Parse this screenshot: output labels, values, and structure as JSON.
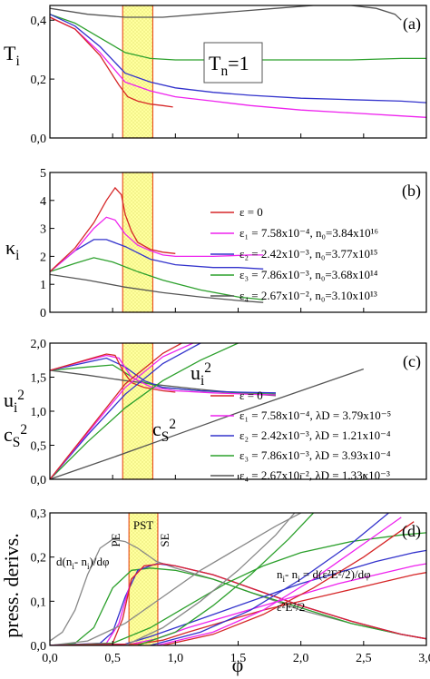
{
  "chart_data": [
    {
      "id": "a",
      "type": "line",
      "panel_label": "(a)",
      "ylabel": "T",
      "ylabel_sub": "i",
      "xlim": [
        0,
        3.0
      ],
      "ylim": [
        0,
        0.45
      ],
      "yticks": [
        "0,0",
        "0,2",
        "0,4"
      ],
      "ytick_values": [
        0,
        0.2,
        0.4
      ],
      "annotation": "T",
      "annotation_sub": "n",
      "annotation_rest": "=1",
      "band": {
        "x0": 0.58,
        "x1": 0.82,
        "style": "hatched-yellow"
      },
      "series": [
        {
          "color": "#555555",
          "x": [
            0,
            0.3,
            0.6,
            0.9,
            1.2,
            1.5,
            1.8,
            2.1,
            2.4,
            2.6,
            2.75,
            2.8
          ],
          "y": [
            0.44,
            0.42,
            0.41,
            0.41,
            0.42,
            0.43,
            0.44,
            0.45,
            0.45,
            0.44,
            0.42,
            0.4
          ]
        },
        {
          "color": "#2ca02c",
          "x": [
            0,
            0.2,
            0.4,
            0.6,
            0.8,
            1.0,
            1.3,
            1.6,
            2.0,
            2.4,
            2.8,
            3.0
          ],
          "y": [
            0.42,
            0.39,
            0.34,
            0.29,
            0.27,
            0.265,
            0.265,
            0.265,
            0.265,
            0.265,
            0.27,
            0.27
          ]
        },
        {
          "color": "#3333cc",
          "x": [
            0,
            0.2,
            0.4,
            0.6,
            0.8,
            1.0,
            1.3,
            1.6,
            2.0,
            2.4,
            2.8,
            3.0
          ],
          "y": [
            0.42,
            0.38,
            0.31,
            0.22,
            0.19,
            0.17,
            0.155,
            0.145,
            0.135,
            0.13,
            0.125,
            0.12
          ]
        },
        {
          "color": "#ee22ee",
          "x": [
            0,
            0.2,
            0.4,
            0.6,
            0.8,
            1.0,
            1.3,
            1.6,
            2.0,
            2.4,
            2.8,
            3.0
          ],
          "y": [
            0.41,
            0.37,
            0.29,
            0.19,
            0.16,
            0.14,
            0.125,
            0.11,
            0.095,
            0.085,
            0.075,
            0.07
          ]
        },
        {
          "color": "#d62728",
          "x": [
            0,
            0.2,
            0.4,
            0.55,
            0.62,
            0.7,
            0.8,
            0.9,
            0.98
          ],
          "y": [
            0.41,
            0.37,
            0.28,
            0.18,
            0.14,
            0.125,
            0.115,
            0.11,
            0.105
          ]
        }
      ]
    },
    {
      "id": "b",
      "type": "line",
      "panel_label": "(b)",
      "ylabel": "κ",
      "ylabel_sub": "i",
      "xlim": [
        0,
        3.0
      ],
      "ylim": [
        0,
        5
      ],
      "yticks": [
        "0",
        "1",
        "2",
        "3",
        "4",
        "5"
      ],
      "ytick_values": [
        0,
        1,
        2,
        3,
        4,
        5
      ],
      "band": {
        "x0": 0.58,
        "x1": 0.82,
        "style": "hatched-yellow"
      },
      "legend": [
        {
          "color": "#d62728",
          "text": "ε = 0"
        },
        {
          "color": "#ee22ee",
          "text": "ε₁ = 7.58x10⁻⁴, n₀=3.84x10¹⁶"
        },
        {
          "color": "#3333cc",
          "text": "ε₂ = 2.42x10⁻³, n₀=3.77x10¹⁵"
        },
        {
          "color": "#2ca02c",
          "text": "ε₃ = 7.86x10⁻³, n₀=3.68x10¹⁴"
        },
        {
          "color": "#555555",
          "text": "ε₄ = 2.67x10⁻², n₀=3.10x10¹³"
        }
      ],
      "series": [
        {
          "color": "#555555",
          "x": [
            0,
            0.3,
            0.6,
            0.9,
            1.2,
            1.5,
            1.7
          ],
          "y": [
            1.35,
            1.15,
            0.9,
            0.7,
            0.55,
            0.42,
            0.35
          ]
        },
        {
          "color": "#2ca02c",
          "x": [
            0,
            0.2,
            0.35,
            0.5,
            0.7,
            0.9,
            1.2,
            1.5,
            1.7
          ],
          "y": [
            1.45,
            1.75,
            1.95,
            1.8,
            1.45,
            1.15,
            0.8,
            0.55,
            0.45
          ]
        },
        {
          "color": "#3333cc",
          "x": [
            0,
            0.2,
            0.35,
            0.45,
            0.6,
            0.8,
            1.0,
            1.3,
            1.5,
            1.7
          ],
          "y": [
            1.45,
            2.2,
            2.6,
            2.6,
            2.35,
            1.9,
            1.7,
            1.6,
            1.6,
            1.55
          ]
        },
        {
          "color": "#ee22ee",
          "x": [
            0,
            0.2,
            0.35,
            0.45,
            0.52,
            0.6,
            0.7,
            0.8,
            0.9,
            1.0,
            1.3,
            1.6,
            1.7
          ],
          "y": [
            1.45,
            2.2,
            3.0,
            3.4,
            3.3,
            2.8,
            2.4,
            2.2,
            2.05,
            2.0,
            2.0,
            2.05,
            2.05
          ]
        },
        {
          "color": "#d62728",
          "x": [
            0,
            0.2,
            0.35,
            0.45,
            0.52,
            0.57,
            0.6,
            0.65,
            0.7,
            0.8,
            0.9,
            1.0
          ],
          "y": [
            1.45,
            2.3,
            3.2,
            4.0,
            4.45,
            4.2,
            3.5,
            2.9,
            2.5,
            2.25,
            2.15,
            2.1
          ]
        }
      ]
    },
    {
      "id": "c",
      "type": "line",
      "panel_label": "(c)",
      "ylabel": "u",
      "ylabel_sub": "i",
      "ylabel_sup": "2",
      "ylabel2": "c",
      "ylabel2_sub": "S",
      "ylabel2_sup": "2",
      "xlim": [
        0,
        3.0
      ],
      "ylim": [
        0,
        2.0
      ],
      "yticks": [
        "0,0",
        "0,5",
        "1,0",
        "1,5",
        "2,0"
      ],
      "ytick_values": [
        0,
        0.5,
        1.0,
        1.5,
        2.0
      ],
      "band": {
        "x0": 0.58,
        "x1": 0.82,
        "style": "hatched-yellow"
      },
      "annotations": [
        {
          "text": "u",
          "sub": "i",
          "sup": "2"
        },
        {
          "text": "c",
          "sub": "S",
          "sup": "2"
        }
      ],
      "legend": [
        {
          "color": "#d62728",
          "text": "ε = 0"
        },
        {
          "color": "#ee22ee",
          "text": "ε₁ = 7.58x10⁻⁴, λD = 3.79x10⁻⁵"
        },
        {
          "color": "#3333cc",
          "text": "ε₂ = 2.42x10⁻³, λD = 1.21x10⁻⁴"
        },
        {
          "color": "#2ca02c",
          "text": "ε₃ = 7.86x10⁻³, λD = 3.93x10⁻⁴"
        },
        {
          "color": "#555555",
          "text": "ε₄ = 2.67x10⁻², λD = 1.33x10⁻³"
        }
      ],
      "series_cs2": [
        {
          "color": "#555555",
          "x": [
            0,
            0.3,
            0.6,
            0.9,
            1.2,
            1.5,
            1.8
          ],
          "y": [
            1.6,
            1.53,
            1.45,
            1.38,
            1.32,
            1.27,
            1.23
          ]
        },
        {
          "color": "#2ca02c",
          "x": [
            0,
            0.3,
            0.5,
            0.7,
            0.9,
            1.2,
            1.5,
            1.8
          ],
          "y": [
            1.6,
            1.65,
            1.68,
            1.45,
            1.35,
            1.3,
            1.27,
            1.25
          ]
        },
        {
          "color": "#3333cc",
          "x": [
            0,
            0.3,
            0.45,
            0.6,
            0.75,
            0.9,
            1.2,
            1.5,
            1.8
          ],
          "y": [
            1.6,
            1.72,
            1.78,
            1.65,
            1.45,
            1.35,
            1.3,
            1.28,
            1.27
          ]
        },
        {
          "color": "#ee22ee",
          "x": [
            0,
            0.3,
            0.45,
            0.55,
            0.65,
            0.8,
            1.0,
            1.3,
            1.6,
            1.8
          ],
          "y": [
            1.6,
            1.75,
            1.82,
            1.78,
            1.5,
            1.36,
            1.3,
            1.27,
            1.25,
            1.24
          ]
        },
        {
          "color": "#d62728",
          "x": [
            0,
            0.3,
            0.45,
            0.52,
            0.58,
            0.65,
            0.75,
            0.9,
            1.0
          ],
          "y": [
            1.6,
            1.76,
            1.84,
            1.82,
            1.6,
            1.42,
            1.35,
            1.3,
            1.28
          ]
        }
      ],
      "series_ui2": [
        {
          "color": "#555555",
          "x": [
            0,
            0.5,
            1.0,
            1.5,
            2.0,
            2.5
          ],
          "y": [
            0,
            0.32,
            0.65,
            0.98,
            1.3,
            1.62
          ]
        },
        {
          "color": "#2ca02c",
          "x": [
            0,
            0.3,
            0.6,
            0.9,
            1.2,
            1.5,
            1.8
          ],
          "y": [
            0,
            0.55,
            1.05,
            1.45,
            1.75,
            2.0,
            2.2
          ]
        },
        {
          "color": "#3333cc",
          "x": [
            0,
            0.3,
            0.6,
            0.9,
            1.2,
            1.4,
            1.6
          ],
          "y": [
            0,
            0.65,
            1.25,
            1.7,
            2.0,
            2.2,
            2.35
          ]
        },
        {
          "color": "#ee22ee",
          "x": [
            0,
            0.3,
            0.6,
            0.9,
            1.2,
            1.4
          ],
          "y": [
            0,
            0.68,
            1.35,
            1.8,
            2.05,
            2.2
          ]
        },
        {
          "color": "#d62728",
          "x": [
            0,
            0.3,
            0.6,
            0.9,
            1.1,
            1.3
          ],
          "y": [
            0,
            0.7,
            1.4,
            1.85,
            2.05,
            2.2
          ]
        }
      ]
    },
    {
      "id": "d",
      "type": "line",
      "panel_label": "(d)",
      "ylabel": "press. derivs.",
      "xlabel": "φ",
      "xlim": [
        0,
        3.0
      ],
      "ylim": [
        0,
        0.3
      ],
      "xticks": [
        "0,0",
        "0,5",
        "1,0",
        "1,5",
        "2,0",
        "2,5",
        "3,0"
      ],
      "xtick_values": [
        0,
        0.5,
        1.0,
        1.5,
        2.0,
        2.5,
        3.0
      ],
      "yticks": [
        "0,0",
        "0,1",
        "0,2",
        "0,3"
      ],
      "ytick_values": [
        0,
        0.1,
        0.2,
        0.3
      ],
      "band": {
        "x0": 0.63,
        "x1": 0.86,
        "style": "hatched-yellow"
      },
      "band_label": "PST",
      "region_labels": [
        "PE",
        "SE"
      ],
      "annotations": [
        {
          "text": "d(n",
          "sub1": "i",
          "mid": "- n",
          "sub2": "i",
          "end": ")/dφ"
        },
        {
          "text": "n",
          "sub1": "i",
          "mid": "- n",
          "sub2": "i",
          "end": " = d(ε²E²/2)/dφ"
        },
        {
          "text": "ε²E²/2"
        }
      ],
      "series_deriv": [
        {
          "color": "#888888",
          "x": [
            0,
            0.1,
            0.2,
            0.3,
            0.4,
            0.5,
            0.6,
            0.7,
            0.85,
            1.0,
            1.3,
            1.6,
            2.0,
            2.4,
            2.8,
            3.0
          ],
          "y": [
            0.01,
            0.03,
            0.08,
            0.16,
            0.22,
            0.24,
            0.235,
            0.22,
            0.19,
            0.175,
            0.15,
            0.12,
            0.08,
            0.05,
            0.025,
            0.015
          ]
        },
        {
          "color": "#2ca02c",
          "x": [
            0,
            0.2,
            0.35,
            0.5,
            0.65,
            0.8,
            1.0,
            1.3,
            1.6,
            2.0,
            2.4,
            2.8,
            3.0
          ],
          "y": [
            0,
            0.005,
            0.04,
            0.13,
            0.17,
            0.175,
            0.17,
            0.15,
            0.12,
            0.085,
            0.05,
            0.025,
            0.015
          ]
        },
        {
          "color": "#3333cc",
          "x": [
            0,
            0.4,
            0.5,
            0.6,
            0.7,
            0.85,
            1.0,
            1.3,
            1.6,
            2.0,
            2.4,
            2.8,
            3.0
          ],
          "y": [
            0,
            0.005,
            0.03,
            0.11,
            0.17,
            0.185,
            0.18,
            0.16,
            0.13,
            0.09,
            0.055,
            0.025,
            0.015
          ]
        },
        {
          "color": "#ee22ee",
          "x": [
            0,
            0.45,
            0.55,
            0.65,
            0.75,
            0.9,
            1.0,
            1.3,
            1.6,
            2.0,
            2.4,
            2.8,
            3.0
          ],
          "y": [
            0,
            0.005,
            0.05,
            0.15,
            0.18,
            0.185,
            0.18,
            0.16,
            0.13,
            0.09,
            0.055,
            0.025,
            0.015
          ]
        },
        {
          "color": "#d62728",
          "x": [
            0,
            0.5,
            0.58,
            0.65,
            0.75,
            0.9,
            1.0,
            1.3,
            1.6,
            2.0,
            2.4,
            2.8,
            3.0
          ],
          "y": [
            0,
            0.005,
            0.06,
            0.15,
            0.18,
            0.185,
            0.18,
            0.16,
            0.13,
            0.09,
            0.055,
            0.025,
            0.015
          ]
        }
      ],
      "series_energy": [
        {
          "color": "#888888",
          "x": [
            0,
            0.3,
            0.6,
            0.9,
            1.2,
            1.5,
            1.8,
            2.0
          ],
          "y": [
            0,
            0.01,
            0.05,
            0.11,
            0.17,
            0.22,
            0.27,
            0.3
          ]
        },
        {
          "color": "#2ca02c",
          "x": [
            0,
            0.5,
            0.8,
            1.1,
            1.4,
            1.7,
            2.0,
            2.4,
            2.8,
            3.0
          ],
          "y": [
            0,
            0.005,
            0.04,
            0.09,
            0.14,
            0.18,
            0.21,
            0.235,
            0.25,
            0.255
          ]
        },
        {
          "color": "#3333cc",
          "x": [
            0,
            0.6,
            0.8,
            1.1,
            1.4,
            1.7,
            2.0,
            2.3,
            2.6,
            2.9,
            3.0
          ],
          "y": [
            0,
            0.003,
            0.02,
            0.05,
            0.08,
            0.11,
            0.14,
            0.165,
            0.19,
            0.21,
            0.215
          ]
        },
        {
          "color": "#ee22ee",
          "x": [
            0,
            0.65,
            0.85,
            1.1,
            1.4,
            1.7,
            2.0,
            2.3,
            2.6,
            2.9,
            3.0
          ],
          "y": [
            0,
            0.003,
            0.015,
            0.04,
            0.065,
            0.09,
            0.115,
            0.14,
            0.16,
            0.18,
            0.185
          ]
        },
        {
          "color": "#d62728",
          "x": [
            0,
            0.7,
            0.9,
            1.1,
            1.4,
            1.7,
            2.0,
            2.3,
            2.6,
            2.9,
            3.0
          ],
          "y": [
            0,
            0.003,
            0.012,
            0.03,
            0.055,
            0.08,
            0.1,
            0.12,
            0.14,
            0.16,
            0.165
          ]
        }
      ],
      "series_rising": [
        {
          "color": "#888888",
          "x": [
            0.6,
            0.9,
            1.2,
            1.5,
            1.8,
            1.95
          ],
          "y": [
            0,
            0.04,
            0.1,
            0.17,
            0.25,
            0.3
          ]
        },
        {
          "color": "#2ca02c",
          "x": [
            0.7,
            1.0,
            1.3,
            1.6,
            1.9,
            2.1
          ],
          "y": [
            0,
            0.03,
            0.09,
            0.16,
            0.24,
            0.3
          ]
        },
        {
          "color": "#3333cc",
          "x": [
            0.8,
            1.2,
            1.6,
            2.0,
            2.4,
            2.7
          ],
          "y": [
            0,
            0.03,
            0.08,
            0.15,
            0.23,
            0.3
          ]
        },
        {
          "color": "#ee22ee",
          "x": [
            0.85,
            1.3,
            1.7,
            2.1,
            2.5,
            2.8
          ],
          "y": [
            0,
            0.03,
            0.08,
            0.15,
            0.23,
            0.29
          ]
        },
        {
          "color": "#d62728",
          "x": [
            0.9,
            1.3,
            1.7,
            2.1,
            2.5,
            2.9
          ],
          "y": [
            0,
            0.025,
            0.07,
            0.13,
            0.2,
            0.28
          ]
        }
      ]
    }
  ]
}
